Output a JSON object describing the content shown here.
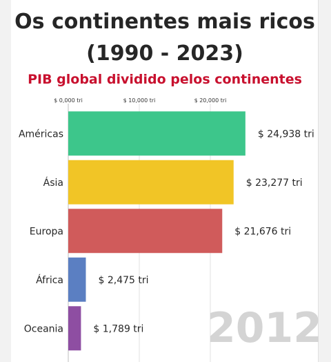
{
  "chart_data": {
    "type": "bar",
    "orientation": "horizontal",
    "title": "Os continentes mais ricos",
    "title_line2": "(1990 - 2023)",
    "subtitle": "PIB global dividido pelos continentes",
    "year": "2012",
    "categories": [
      "Américas",
      "Ásia",
      "Europa",
      "África",
      "Oceania"
    ],
    "values": [
      24.938,
      23.277,
      21.676,
      2.475,
      1.789
    ],
    "value_labels": [
      "$ 24,938 tri",
      "$ 23,277 tri",
      "$ 21,676 tri",
      "$ 2,475 tri",
      "$ 1,789 tri"
    ],
    "colors": [
      "#3dc68b",
      "#f1c526",
      "#d05b5b",
      "#5b7fc2",
      "#8e4ea2"
    ],
    "xticks": [
      {
        "value": 0,
        "label": "$ 0,000 tri"
      },
      {
        "value": 10,
        "label": "$ 10,000 tri"
      },
      {
        "value": 20,
        "label": "$ 20,000 tri"
      }
    ],
    "xlim": [
      0,
      30
    ],
    "grid": true,
    "xaxis_position": "top"
  }
}
